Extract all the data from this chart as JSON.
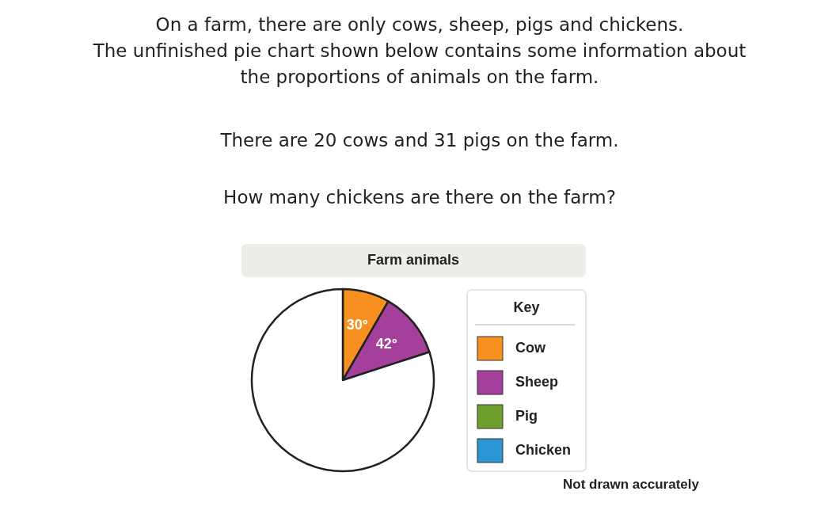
{
  "chart_data": {
    "type": "pie",
    "title": "Farm animals",
    "legend_title": "Key",
    "legend": "right",
    "categories": [
      "Cow",
      "Sheep",
      "Pig",
      "Chicken",
      null
    ],
    "values": [
      30,
      42,
      null,
      null,
      288
    ],
    "colors": [
      "#f7901e",
      "#a43f9c",
      "#6f9f2d",
      "#2a96d4",
      "#ffffff"
    ],
    "value_labels": [
      "30°",
      "42°",
      null,
      null,
      null
    ],
    "annotations": [
      "On a farm, there are only cows, sheep, pigs and chickens.",
      "The unfinished pie chart shown below contains some information about",
      "the proportions of animals on the farm.",
      "There are 20 cows and 31 pigs on the farm.",
      "How many chickens are there on the farm?",
      "Not drawn accurately"
    ]
  }
}
